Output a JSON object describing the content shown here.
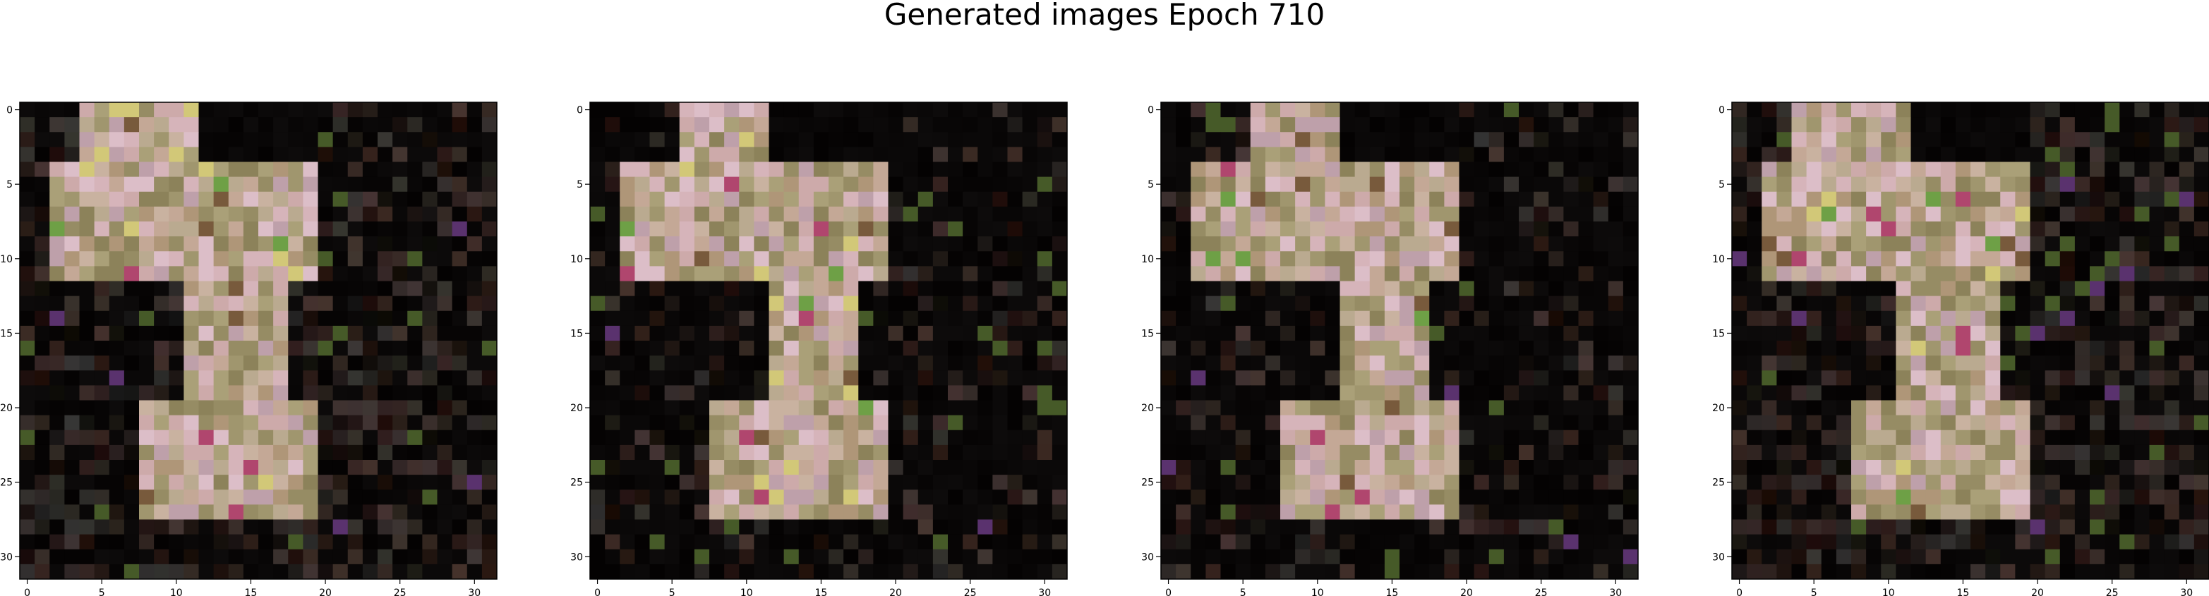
{
  "suptitle": "Generated images Epoch 710",
  "chart_data": [
    {
      "type": "heatmap",
      "xticks": [
        0,
        5,
        10,
        15,
        20,
        25,
        30
      ],
      "yticks": [
        0,
        5,
        10,
        15,
        20,
        25,
        30
      ],
      "xlim": [
        -0.5,
        31.5
      ],
      "ylim": [
        31.5,
        -0.5
      ],
      "grid": false,
      "pattern": 0
    },
    {
      "type": "heatmap",
      "xticks": [
        0,
        5,
        10,
        15,
        20,
        25,
        30
      ],
      "yticks": [
        0,
        5,
        10,
        15,
        20,
        25,
        30
      ],
      "xlim": [
        -0.5,
        31.5
      ],
      "ylim": [
        31.5,
        -0.5
      ],
      "grid": false,
      "pattern": 1
    },
    {
      "type": "heatmap",
      "xticks": [
        0,
        5,
        10,
        15,
        20,
        25,
        30
      ],
      "yticks": [
        0,
        5,
        10,
        15,
        20,
        25,
        30
      ],
      "xlim": [
        -0.5,
        31.5
      ],
      "ylim": [
        31.5,
        -0.5
      ],
      "grid": false,
      "pattern": 1
    },
    {
      "type": "heatmap",
      "xticks": [
        0,
        5,
        10,
        15,
        20,
        25,
        30
      ],
      "yticks": [
        0,
        5,
        10,
        15,
        20,
        25,
        30
      ],
      "xlim": [
        -0.5,
        31.5
      ],
      "ylim": [
        31.5,
        -0.5
      ],
      "grid": false,
      "pattern": 0
    }
  ]
}
